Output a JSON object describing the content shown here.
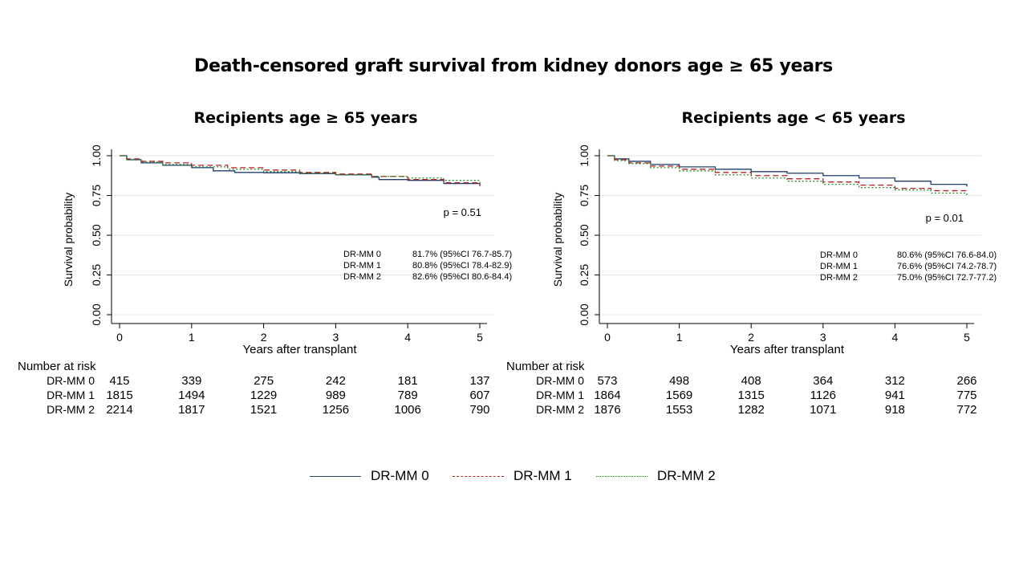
{
  "title": "Death-censored graft survival from kidney donors age ≥ 65 years",
  "legend": [
    {
      "label": "DR-MM 0",
      "color": "#1f3f6e",
      "dash": "solid"
    },
    {
      "label": "DR-MM 1",
      "color": "#b22222",
      "dash": "dashed"
    },
    {
      "label": "DR-MM 2",
      "color": "#2e8b2e",
      "dash": "dotted"
    }
  ],
  "chart_data": [
    {
      "type": "line",
      "title": "Recipients age ≥ 65 years",
      "xlabel": "Years after transplant",
      "ylabel": "Survival probability",
      "xlim": [
        0,
        5
      ],
      "ylim": [
        0,
        1
      ],
      "x_ticks": [
        "0",
        "1",
        "2",
        "3",
        "4",
        "5"
      ],
      "y_ticks": [
        "0.00",
        "0.25",
        "0.50",
        "0.75",
        "1.00"
      ],
      "grid": true,
      "p_value": "p = 0.51",
      "estimates": [
        {
          "group": "DR-MM 0",
          "value": "81.7% (95%CI 76.7-85.7)"
        },
        {
          "group": "DR-MM 1",
          "value": "80.8% (95%CI 78.4-82.9)"
        },
        {
          "group": "DR-MM 2",
          "value": "82.6% (95%CI 80.6-84.4)"
        }
      ],
      "series": [
        {
          "name": "DR-MM 0",
          "x": [
            0,
            0.1,
            0.3,
            0.6,
            1.0,
            1.3,
            1.6,
            2.0,
            2.5,
            3.0,
            3.5,
            3.6,
            4.0,
            4.5,
            5.0
          ],
          "y": [
            1.0,
            0.975,
            0.955,
            0.94,
            0.925,
            0.905,
            0.895,
            0.893,
            0.888,
            0.88,
            0.865,
            0.85,
            0.845,
            0.825,
            0.817
          ]
        },
        {
          "name": "DR-MM 1",
          "x": [
            0,
            0.1,
            0.3,
            0.6,
            1.0,
            1.5,
            2.0,
            2.5,
            3.0,
            3.5,
            4.0,
            4.5,
            5.0
          ],
          "y": [
            1.0,
            0.98,
            0.965,
            0.955,
            0.94,
            0.925,
            0.91,
            0.895,
            0.885,
            0.87,
            0.85,
            0.83,
            0.808
          ]
        },
        {
          "name": "DR-MM 2",
          "x": [
            0,
            0.1,
            0.3,
            0.6,
            1.0,
            1.5,
            2.0,
            2.5,
            3.0,
            3.5,
            4.0,
            4.5,
            5.0
          ],
          "y": [
            1.0,
            0.975,
            0.96,
            0.945,
            0.93,
            0.915,
            0.9,
            0.89,
            0.88,
            0.87,
            0.86,
            0.845,
            0.826
          ]
        }
      ],
      "risk_table": {
        "header": "Number at risk",
        "rows": [
          {
            "label": "DR-MM 0",
            "values": [
              "415",
              "339",
              "275",
              "242",
              "181",
              "137"
            ]
          },
          {
            "label": "DR-MM 1",
            "values": [
              "1815",
              "1494",
              "1229",
              "989",
              "789",
              "607"
            ]
          },
          {
            "label": "DR-MM 2",
            "values": [
              "2214",
              "1817",
              "1521",
              "1256",
              "1006",
              "790"
            ]
          }
        ]
      }
    },
    {
      "type": "line",
      "title": "Recipients age < 65 years",
      "xlabel": "Years after transplant",
      "ylabel": "Survival probability",
      "xlim": [
        0,
        5
      ],
      "ylim": [
        0,
        1
      ],
      "x_ticks": [
        "0",
        "1",
        "2",
        "3",
        "4",
        "5"
      ],
      "y_ticks": [
        "0.00",
        "0.25",
        "0.50",
        "0.75",
        "1.00"
      ],
      "grid": true,
      "p_value": "p = 0.01",
      "estimates": [
        {
          "group": "DR-MM 0",
          "value": "80.6% (95%CI 76.6-84.0)"
        },
        {
          "group": "DR-MM 1",
          "value": "76.6% (95%CI 74.2-78.7)"
        },
        {
          "group": "DR-MM 2",
          "value": "75.0% (95%CI 72.7-77.2)"
        }
      ],
      "series": [
        {
          "name": "DR-MM 0",
          "x": [
            0,
            0.1,
            0.3,
            0.6,
            1.0,
            1.5,
            2.0,
            2.5,
            3.0,
            3.5,
            4.0,
            4.5,
            5.0
          ],
          "y": [
            1.0,
            0.98,
            0.965,
            0.945,
            0.93,
            0.915,
            0.9,
            0.89,
            0.875,
            0.86,
            0.84,
            0.82,
            0.806
          ]
        },
        {
          "name": "DR-MM 1",
          "x": [
            0,
            0.1,
            0.3,
            0.6,
            1.0,
            1.5,
            2.0,
            2.5,
            3.0,
            3.5,
            4.0,
            4.5,
            5.0
          ],
          "y": [
            1.0,
            0.975,
            0.955,
            0.935,
            0.915,
            0.895,
            0.875,
            0.855,
            0.835,
            0.815,
            0.795,
            0.78,
            0.766
          ]
        },
        {
          "name": "DR-MM 2",
          "x": [
            0,
            0.1,
            0.3,
            0.6,
            1.0,
            1.5,
            2.0,
            2.5,
            3.0,
            3.5,
            4.0,
            4.5,
            5.0
          ],
          "y": [
            1.0,
            0.97,
            0.95,
            0.925,
            0.905,
            0.88,
            0.86,
            0.84,
            0.82,
            0.8,
            0.785,
            0.765,
            0.75
          ]
        }
      ],
      "risk_table": {
        "header": "Number at risk",
        "rows": [
          {
            "label": "DR-MM 0",
            "values": [
              "573",
              "498",
              "408",
              "364",
              "312",
              "266"
            ]
          },
          {
            "label": "DR-MM 1",
            "values": [
              "1864",
              "1569",
              "1315",
              "1126",
              "941",
              "775"
            ]
          },
          {
            "label": "DR-MM 2",
            "values": [
              "1876",
              "1553",
              "1282",
              "1071",
              "918",
              "772"
            ]
          }
        ]
      }
    }
  ]
}
